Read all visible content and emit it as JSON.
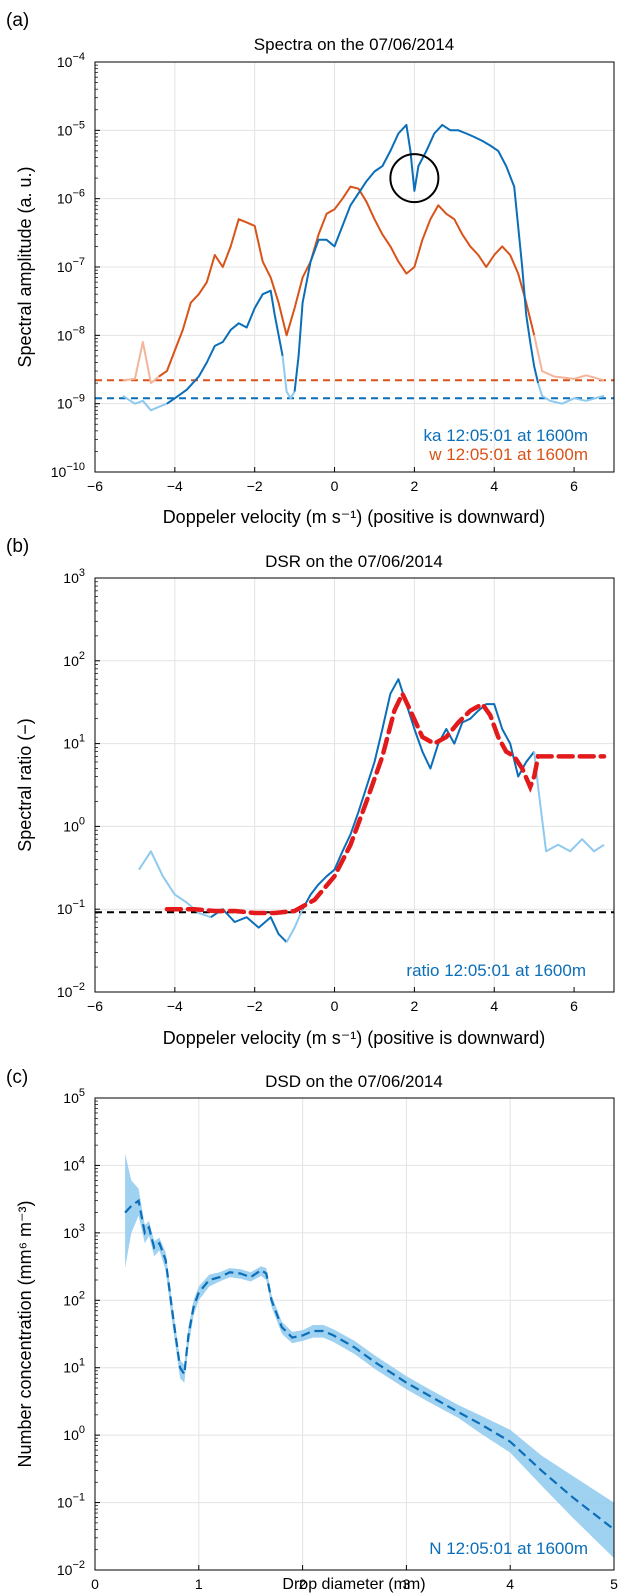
{
  "chart_data": [
    {
      "panel": "(a)",
      "type": "line",
      "title": "Spectra on the 07/06/2014",
      "xlabel": "Doppeler velocity (m s⁻¹) (positive is downward)",
      "ylabel": "Spectral amplitude (a. u.)",
      "xlim": [
        -6,
        7
      ],
      "ylim": [
        1e-10,
        0.0001
      ],
      "yscale": "log",
      "grid": true,
      "xticks": [
        "−6",
        "−4",
        "−2",
        "0",
        "2",
        "4",
        "6"
      ],
      "xtick_values": [
        -6,
        -4,
        -2,
        0,
        2,
        4,
        6
      ],
      "yticks": [
        {
          "base": "10",
          "exp": "−10",
          "value": 1e-10
        },
        {
          "base": "10",
          "exp": "−9",
          "value": 1e-09
        },
        {
          "base": "10",
          "exp": "−8",
          "value": 1e-08
        },
        {
          "base": "10",
          "exp": "−7",
          "value": 1e-07
        },
        {
          "base": "10",
          "exp": "−6",
          "value": 1e-06
        },
        {
          "base": "10",
          "exp": "−5",
          "value": 1e-05
        },
        {
          "base": "10",
          "exp": "−4",
          "value": 0.0001
        }
      ],
      "legend_position": "bottom-right",
      "series": [
        {
          "name": "ka 12:05:01 at 1600m",
          "color": "#0b6eb8",
          "noise_color": "#8ec9ef",
          "noise_level": 1.2e-09,
          "noise_ranges": [
            [
              -5.3,
              -4.1
            ],
            [
              -1.25,
              -0.95
            ],
            [
              5.2,
              6.75
            ]
          ],
          "x": [
            -5.3,
            -5.0,
            -4.8,
            -4.6,
            -4.4,
            -4.2,
            -4.0,
            -3.7,
            -3.4,
            -3.2,
            -3.0,
            -2.8,
            -2.6,
            -2.4,
            -2.2,
            -2.0,
            -1.8,
            -1.6,
            -1.5,
            -1.3,
            -1.2,
            -1.1,
            -1.0,
            -0.9,
            -0.8,
            -0.6,
            -0.4,
            -0.2,
            0.0,
            0.2,
            0.4,
            0.6,
            0.8,
            1.0,
            1.2,
            1.4,
            1.6,
            1.8,
            1.9,
            2.0,
            2.1,
            2.3,
            2.5,
            2.7,
            2.9,
            3.1,
            3.3,
            3.5,
            3.7,
            3.9,
            4.1,
            4.3,
            4.5,
            4.7,
            4.8,
            4.9,
            5.0,
            5.1,
            5.2,
            5.4,
            5.7,
            6.0,
            6.3,
            6.75
          ],
          "y": [
            1.3e-09,
            1e-09,
            1.1e-09,
            8e-10,
            9e-10,
            1e-09,
            1.2e-09,
            1.6e-09,
            2.5e-09,
            4e-09,
            7e-09,
            8e-09,
            1.2e-08,
            1.5e-08,
            1.3e-08,
            2.5e-08,
            4e-08,
            4.5e-08,
            2e-08,
            5e-09,
            1.5e-09,
            1.2e-09,
            1.5e-09,
            5e-09,
            3e-08,
            1.2e-07,
            2.5e-07,
            2.5e-07,
            2e-07,
            4e-07,
            8e-07,
            1.2e-06,
            1.8e-06,
            2.5e-06,
            3e-06,
            5e-06,
            9e-06,
            1.2e-05,
            5e-06,
            1.3e-06,
            3e-06,
            5e-06,
            9e-06,
            1.2e-05,
            1e-05,
            1e-05,
            9e-06,
            8e-06,
            7e-06,
            6e-06,
            5e-06,
            3e-06,
            1.5e-06,
            1e-07,
            2e-08,
            8e-09,
            3.5e-09,
            2e-09,
            1.3e-09,
            1.1e-09,
            1e-09,
            1.2e-09,
            1.1e-09,
            1.3e-09
          ]
        },
        {
          "name": "w 12:05:01 at 1600m",
          "color": "#d95319",
          "noise_color": "#f4b49a",
          "noise_level": 2.2e-09,
          "noise_ranges": [
            [
              -5.3,
              -4.4
            ],
            [
              5.2,
              6.75
            ]
          ],
          "x": [
            -5.3,
            -5.0,
            -4.8,
            -4.6,
            -4.4,
            -4.2,
            -4.0,
            -3.8,
            -3.6,
            -3.4,
            -3.2,
            -3.0,
            -2.8,
            -2.6,
            -2.4,
            -2.2,
            -2.0,
            -1.8,
            -1.6,
            -1.4,
            -1.2,
            -1.0,
            -0.8,
            -0.6,
            -0.4,
            -0.2,
            0.0,
            0.2,
            0.4,
            0.6,
            0.8,
            1.0,
            1.2,
            1.4,
            1.6,
            1.8,
            2.0,
            2.2,
            2.4,
            2.6,
            2.8,
            3.0,
            3.2,
            3.4,
            3.6,
            3.8,
            4.0,
            4.2,
            4.4,
            4.6,
            4.8,
            5.0,
            5.2,
            5.5,
            6.0,
            6.3,
            6.75
          ],
          "y": [
            2.2e-09,
            2.3e-09,
            8e-09,
            2e-09,
            2.5e-09,
            3e-09,
            6e-09,
            1.2e-08,
            3e-08,
            4e-08,
            6e-08,
            1.5e-07,
            1e-07,
            2e-07,
            5e-07,
            4.5e-07,
            4e-07,
            1.2e-07,
            7e-08,
            3e-08,
            1e-08,
            2.5e-08,
            7e-08,
            1.2e-07,
            3e-07,
            6e-07,
            7e-07,
            1e-06,
            1.5e-06,
            1.4e-06,
            9e-07,
            5e-07,
            3e-07,
            2e-07,
            1.2e-07,
            8e-08,
            1e-07,
            2.5e-07,
            5e-07,
            8e-07,
            6e-07,
            5e-07,
            3e-07,
            2e-07,
            1.5e-07,
            1e-07,
            1.5e-07,
            2e-07,
            1.5e-07,
            8e-08,
            3e-08,
            1e-08,
            3e-09,
            2.5e-09,
            2.3e-09,
            2.6e-09,
            2.2e-09
          ]
        }
      ],
      "annotation_circle": {
        "x": 2.0,
        "y": 2e-06
      }
    },
    {
      "panel": "(b)",
      "type": "line",
      "title": "DSR on the 07/06/2014",
      "xlabel": "Doppeler velocity (m s⁻¹) (positive is downward)",
      "ylabel": "Spectral ratio (−)",
      "xlim": [
        -6,
        7
      ],
      "ylim": [
        0.01,
        1000
      ],
      "yscale": "log",
      "grid": true,
      "xticks": [
        "−6",
        "−4",
        "−2",
        "0",
        "2",
        "4",
        "6"
      ],
      "xtick_values": [
        -6,
        -4,
        -2,
        0,
        2,
        4,
        6
      ],
      "yticks": [
        {
          "base": "10",
          "exp": "−2",
          "value": 0.01
        },
        {
          "base": "10",
          "exp": "−1",
          "value": 0.1
        },
        {
          "base": "10",
          "exp": "0",
          "value": 1
        },
        {
          "base": "10",
          "exp": "1",
          "value": 10
        },
        {
          "base": "10",
          "exp": "2",
          "value": 100
        },
        {
          "base": "10",
          "exp": "3",
          "value": 1000
        }
      ],
      "legend_position": "bottom-right",
      "threshold": 0.092,
      "series": [
        {
          "name": "ratio 12:05:01 at 1600m",
          "color": "#0b6eb8",
          "noise_color": "#8ec9ef",
          "noise_ranges": [
            [
              -4.9,
              -2.9
            ],
            [
              -1.0,
              -0.7
            ],
            [
              5.1,
              6.75
            ]
          ],
          "x": [
            -4.9,
            -4.6,
            -4.3,
            -4.0,
            -3.7,
            -3.4,
            -3.1,
            -2.8,
            -2.5,
            -2.2,
            -1.9,
            -1.6,
            -1.4,
            -1.2,
            -1.0,
            -0.8,
            -0.6,
            -0.4,
            -0.2,
            0.0,
            0.2,
            0.4,
            0.6,
            0.8,
            1.0,
            1.2,
            1.4,
            1.6,
            1.8,
            2.0,
            2.2,
            2.4,
            2.6,
            2.8,
            3.0,
            3.2,
            3.4,
            3.6,
            3.8,
            4.0,
            4.2,
            4.4,
            4.6,
            4.8,
            5.0,
            5.1,
            5.3,
            5.6,
            5.9,
            6.2,
            6.5,
            6.75
          ],
          "y": [
            0.3,
            0.5,
            0.25,
            0.15,
            0.12,
            0.09,
            0.08,
            0.1,
            0.07,
            0.08,
            0.06,
            0.08,
            0.05,
            0.04,
            0.06,
            0.1,
            0.15,
            0.2,
            0.25,
            0.3,
            0.5,
            0.8,
            1.5,
            3,
            6,
            15,
            40,
            60,
            30,
            15,
            8,
            5,
            10,
            15,
            10,
            18,
            20,
            25,
            30,
            30,
            15,
            10,
            4,
            6,
            8,
            3,
            0.5,
            0.6,
            0.5,
            0.7,
            0.5,
            0.6
          ]
        }
      ],
      "fit": {
        "color": "#e31a1c",
        "x": [
          -4.2,
          -3.5,
          -3.0,
          -2.5,
          -2.0,
          -1.5,
          -1.0,
          -0.5,
          0.0,
          0.4,
          0.8,
          1.2,
          1.5,
          1.7,
          1.9,
          2.2,
          2.5,
          2.8,
          3.1,
          3.4,
          3.7,
          3.9,
          4.1,
          4.3,
          4.5,
          4.7,
          4.9,
          5.0,
          5.1,
          5.3,
          5.6,
          6.0,
          6.5,
          6.75
        ],
        "y": [
          0.1,
          0.1,
          0.095,
          0.095,
          0.09,
          0.09,
          0.095,
          0.13,
          0.25,
          0.6,
          2,
          7,
          25,
          40,
          25,
          12,
          10,
          12,
          18,
          25,
          30,
          22,
          12,
          8,
          7,
          5,
          3,
          4,
          7,
          7,
          7,
          7,
          7,
          7
        ]
      }
    },
    {
      "panel": "(c)",
      "type": "area",
      "title": "DSD on the 07/06/2014",
      "xlabel": "Drop diameter (mm)",
      "ylabel": "Number concentration (mm⁶ m⁻³)",
      "xlim": [
        0,
        5
      ],
      "ylim": [
        0.01,
        100000
      ],
      "yscale": "log",
      "grid": true,
      "xticks": [
        "0",
        "1",
        "2",
        "3",
        "4",
        "5"
      ],
      "xtick_values": [
        0,
        1,
        2,
        3,
        4,
        5
      ],
      "yticks": [
        {
          "base": "10",
          "exp": "−2",
          "value": 0.01
        },
        {
          "base": "10",
          "exp": "−1",
          "value": 0.1
        },
        {
          "base": "10",
          "exp": "0",
          "value": 1
        },
        {
          "base": "10",
          "exp": "1",
          "value": 10
        },
        {
          "base": "10",
          "exp": "2",
          "value": 100
        },
        {
          "base": "10",
          "exp": "3",
          "value": 1000
        },
        {
          "base": "10",
          "exp": "4",
          "value": 10000
        },
        {
          "base": "10",
          "exp": "5",
          "value": 100000
        }
      ],
      "legend_position": "bottom-right",
      "series": [
        {
          "name": "N 12:05:01 at 1600m",
          "color": "#0b6eb8",
          "band_color": "#8ec9ef",
          "x": [
            0.29,
            0.35,
            0.42,
            0.48,
            0.52,
            0.57,
            0.62,
            0.68,
            0.75,
            0.82,
            0.86,
            0.9,
            0.95,
            1.0,
            1.1,
            1.2,
            1.3,
            1.4,
            1.5,
            1.6,
            1.65,
            1.7,
            1.8,
            1.9,
            2.0,
            2.1,
            2.2,
            2.3,
            2.5,
            2.7,
            3.0,
            3.2,
            3.5,
            3.7,
            4.0,
            4.3,
            4.6,
            5.0
          ],
          "y": [
            2000,
            2500,
            3000,
            1000,
            1200,
            600,
            700,
            400,
            60,
            10,
            8,
            30,
            80,
            130,
            200,
            220,
            260,
            250,
            220,
            280,
            250,
            100,
            40,
            28,
            30,
            35,
            35,
            30,
            20,
            12,
            6,
            4,
            2.2,
            1.5,
            0.8,
            0.3,
            0.12,
            0.04
          ],
          "lower": [
            300,
            1000,
            1800,
            700,
            900,
            450,
            550,
            280,
            40,
            7,
            6,
            20,
            60,
            100,
            160,
            190,
            220,
            210,
            190,
            230,
            200,
            80,
            32,
            23,
            25,
            28,
            28,
            24,
            16,
            9.5,
            4.8,
            3.2,
            1.8,
            1.1,
            0.55,
            0.18,
            0.06,
            0.015
          ],
          "upper": [
            15000,
            6000,
            4500,
            1300,
            1500,
            750,
            850,
            520,
            80,
            13,
            11,
            40,
            100,
            160,
            240,
            260,
            300,
            290,
            260,
            320,
            300,
            120,
            48,
            34,
            36,
            43,
            43,
            37,
            25,
            15,
            7.5,
            5,
            2.8,
            2.0,
            1.2,
            0.5,
            0.25,
            0.1
          ]
        }
      ]
    }
  ]
}
